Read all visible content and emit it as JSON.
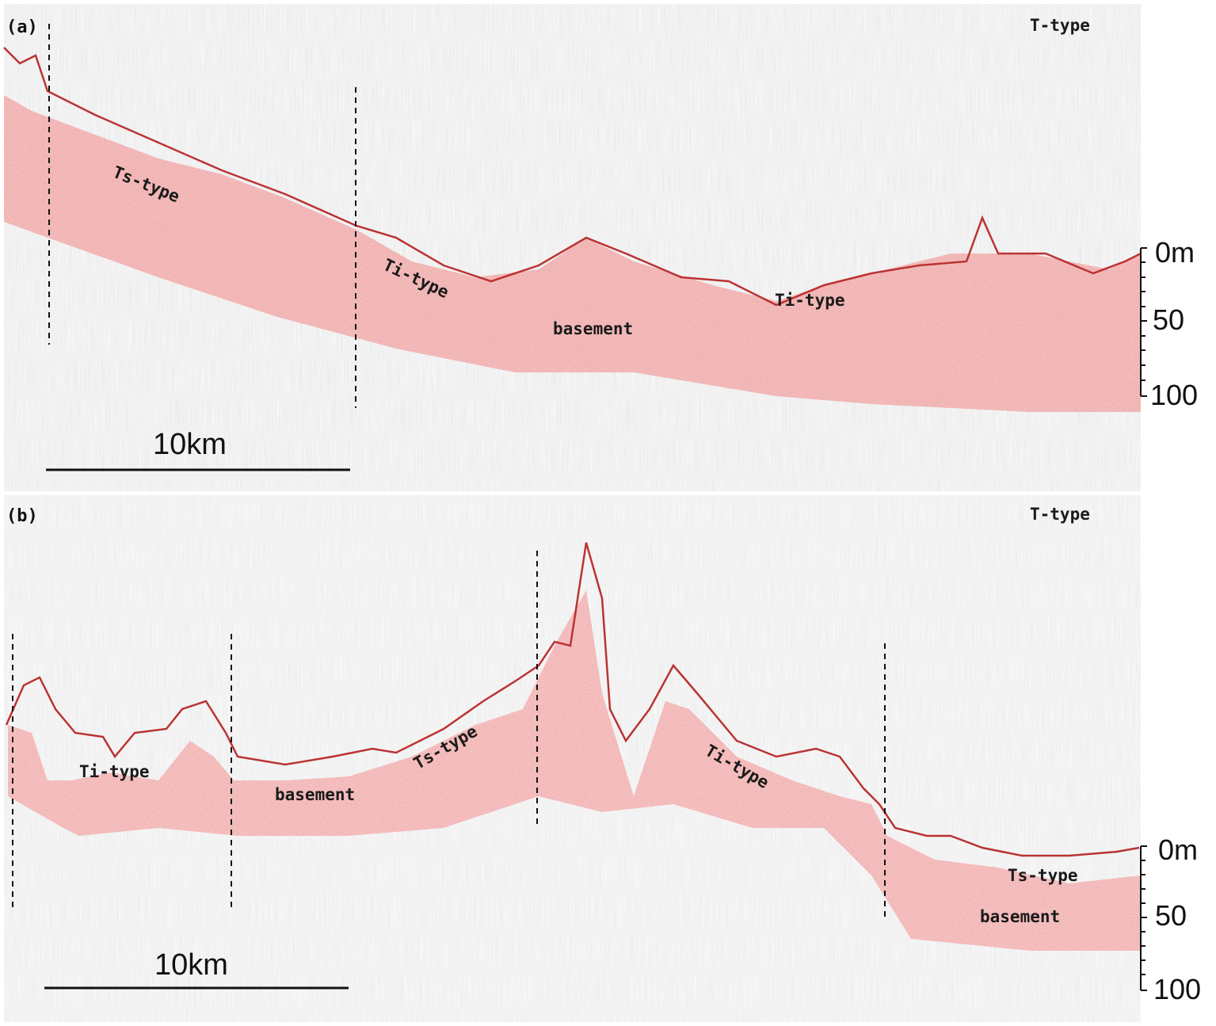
{
  "colors": {
    "reflector": "#d42a2a",
    "background_noise": "#cfcfcf",
    "ink": "#111111"
  },
  "panel_a": {
    "label": "(a)",
    "type_label": "T-type",
    "facies_labels": [
      "Ts-type",
      "Ti-type",
      "basement",
      "Ti-type"
    ],
    "scale_bar": "10km",
    "depth_ticks": [
      "0m",
      "50",
      "100"
    ]
  },
  "panel_b": {
    "label": "(b)",
    "type_label": "T-type",
    "facies_labels": [
      "Ti-type",
      "basement",
      "Ts-type",
      "Ti-type",
      "Ts-type",
      "basement"
    ],
    "scale_bar": "10km",
    "depth_ticks": [
      "0m",
      "50",
      "100"
    ]
  }
}
